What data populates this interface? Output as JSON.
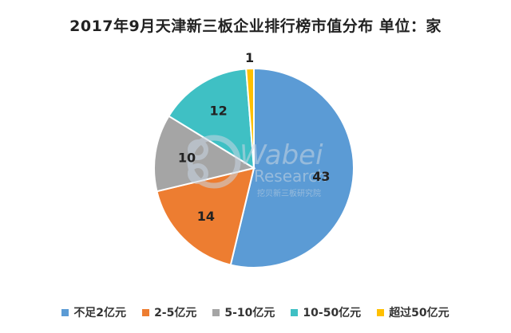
{
  "chart_data": {
    "type": "pie",
    "title": "2017年9月天津新三板企业排行榜市值分布 单位：家",
    "categories": [
      "不足2亿元",
      "2-5亿元",
      "5-10亿元",
      "10-50亿元",
      "超过50亿元"
    ],
    "values": [
      43,
      14,
      10,
      12,
      1
    ],
    "colors": [
      "#5B9BD5",
      "#ED7D31",
      "#A5A5A5",
      "#3FC0C4",
      "#FFC000"
    ],
    "legend_position": "bottom"
  },
  "watermark": {
    "brand": "Wabei",
    "sub": "Research",
    "cn": "挖贝新三板研究院"
  }
}
